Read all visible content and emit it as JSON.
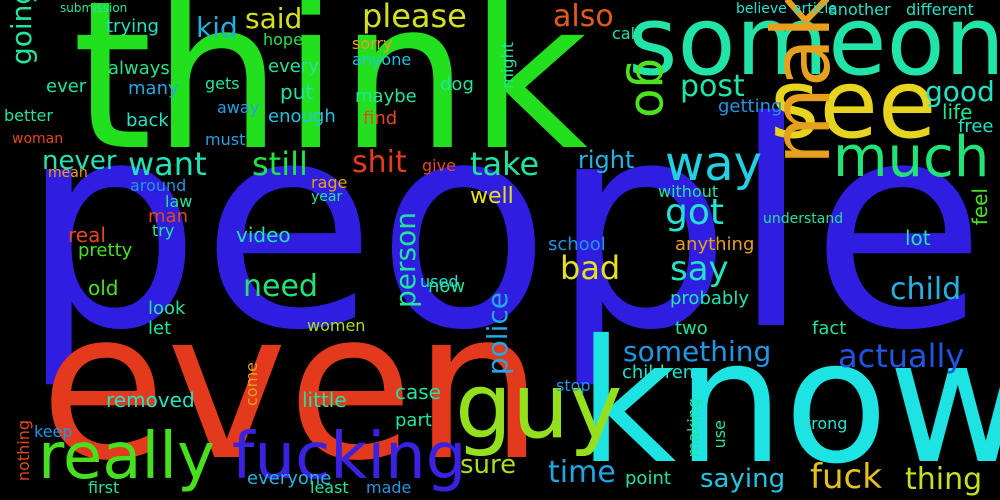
{
  "title": "",
  "background": "#000000",
  "words": [
    {
      "text": "people",
      "color": "#2f1ee0"
    },
    {
      "text": "think",
      "color": "#22e01e"
    },
    {
      "text": "even",
      "color": "#e3391d"
    },
    {
      "text": "know",
      "color": "#1ee3e3"
    },
    {
      "text": "someone",
      "color": "#22e3a8"
    },
    {
      "text": "see",
      "color": "#e6d41e"
    },
    {
      "text": "guy",
      "color": "#94e01e"
    },
    {
      "text": "really",
      "color": "#46e01e"
    },
    {
      "text": "fucking",
      "color": "#3a22e0"
    },
    {
      "text": "make",
      "color": "#e6a01e"
    },
    {
      "text": "much",
      "color": "#22e376"
    },
    {
      "text": "way",
      "color": "#22d2e3"
    },
    {
      "text": "go",
      "color": "#4fe01e"
    },
    {
      "text": "want",
      "color": "#22e3b4"
    },
    {
      "text": "still",
      "color": "#22e346"
    },
    {
      "text": "shit",
      "color": "#e33b1d"
    },
    {
      "text": "take",
      "color": "#22e3a0"
    },
    {
      "text": "got",
      "color": "#22e3d4"
    },
    {
      "text": "say",
      "color": "#22e3c4"
    },
    {
      "text": "need",
      "color": "#22e376"
    },
    {
      "text": "bad",
      "color": "#e6e01e"
    },
    {
      "text": "please",
      "color": "#d4e01e"
    },
    {
      "text": "said",
      "color": "#d4e01e"
    },
    {
      "text": "also",
      "color": "#e35a1d"
    },
    {
      "text": "kid",
      "color": "#22aee3"
    },
    {
      "text": "post",
      "color": "#22e3a8"
    },
    {
      "text": "good",
      "color": "#22e3c4"
    },
    {
      "text": "going",
      "color": "#22e3a0"
    },
    {
      "text": "never",
      "color": "#22e3b4"
    },
    {
      "text": "something",
      "color": "#2296e3"
    },
    {
      "text": "actually",
      "color": "#2254e3"
    },
    {
      "text": "child",
      "color": "#22b2e3"
    },
    {
      "text": "police",
      "color": "#22a8e3"
    },
    {
      "text": "person",
      "color": "#22e3a0"
    },
    {
      "text": "fuck",
      "color": "#e6c01e"
    },
    {
      "text": "thing",
      "color": "#c4e01e"
    },
    {
      "text": "time",
      "color": "#22a4e3"
    },
    {
      "text": "saying",
      "color": "#22c4e3"
    },
    {
      "text": "sure",
      "color": "#a8e01e"
    },
    {
      "text": "removed",
      "color": "#22e3c4"
    },
    {
      "text": "everyone",
      "color": "#22b4e3"
    },
    {
      "text": "right",
      "color": "#22b4e3"
    },
    {
      "text": "life",
      "color": "#22e38a"
    },
    {
      "text": "free",
      "color": "#22e3c4"
    },
    {
      "text": "feel",
      "color": "#46e31e"
    },
    {
      "text": "lot",
      "color": "#22e3a8"
    },
    {
      "text": "case",
      "color": "#22e3a0"
    },
    {
      "text": "little",
      "color": "#22e3a0"
    },
    {
      "text": "children",
      "color": "#22e3d4"
    },
    {
      "text": "probably",
      "color": "#22e3b4"
    },
    {
      "text": "well",
      "color": "#e6e01e"
    },
    {
      "text": "video",
      "color": "#22e3b4"
    },
    {
      "text": "pretty",
      "color": "#46e31e"
    },
    {
      "text": "old",
      "color": "#46e31e"
    },
    {
      "text": "real",
      "color": "#e6481e"
    },
    {
      "text": "anything",
      "color": "#e6a01e"
    },
    {
      "text": "school",
      "color": "#2296e3"
    },
    {
      "text": "always",
      "color": "#22e38a"
    },
    {
      "text": "many",
      "color": "#22a8e3"
    },
    {
      "text": "trying",
      "color": "#22e3c4"
    },
    {
      "text": "hope",
      "color": "#22e346"
    },
    {
      "text": "every",
      "color": "#22e3a0"
    },
    {
      "text": "put",
      "color": "#22e3a0"
    },
    {
      "text": "maybe",
      "color": "#22e3a0"
    },
    {
      "text": "enough",
      "color": "#22c4e3"
    },
    {
      "text": "find",
      "color": "#e6481e"
    },
    {
      "text": "dog",
      "color": "#22e3a0"
    },
    {
      "text": "might",
      "color": "#22e3a0"
    },
    {
      "text": "sorry",
      "color": "#e6a01e"
    },
    {
      "text": "anyone",
      "color": "#22c4e3"
    },
    {
      "text": "gets",
      "color": "#22e3a0"
    },
    {
      "text": "away",
      "color": "#22a0e3"
    },
    {
      "text": "must",
      "color": "#22a0e3"
    },
    {
      "text": "back",
      "color": "#22e3c4"
    },
    {
      "text": "ever",
      "color": "#22e3a0"
    },
    {
      "text": "getting",
      "color": "#2296e3"
    },
    {
      "text": "another",
      "color": "#22e3c4"
    },
    {
      "text": "different",
      "color": "#22e3c4"
    },
    {
      "text": "believe",
      "color": "#22e3d4"
    },
    {
      "text": "article",
      "color": "#22e3d4"
    },
    {
      "text": "call",
      "color": "#22e3a0"
    },
    {
      "text": "rage",
      "color": "#e6a01e"
    },
    {
      "text": "year",
      "color": "#22e3a0"
    },
    {
      "text": "law",
      "color": "#22e3a0"
    },
    {
      "text": "man",
      "color": "#e6481e"
    },
    {
      "text": "try",
      "color": "#22e3a0"
    },
    {
      "text": "around",
      "color": "#2296e3"
    },
    {
      "text": "give",
      "color": "#e6481e"
    },
    {
      "text": "without",
      "color": "#22e3a0"
    },
    {
      "text": "understand",
      "color": "#22e3a0"
    },
    {
      "text": "two",
      "color": "#22e3a0"
    },
    {
      "text": "fact",
      "color": "#22e3a0"
    },
    {
      "text": "women",
      "color": "#a8e01e"
    },
    {
      "text": "look",
      "color": "#22e3a0"
    },
    {
      "text": "let",
      "color": "#22e3a0"
    },
    {
      "text": "now",
      "color": "#22e3a0"
    },
    {
      "text": "used",
      "color": "#22e3d4"
    },
    {
      "text": "part",
      "color": "#22e3a0"
    },
    {
      "text": "come",
      "color": "#e6a01e"
    },
    {
      "text": "wrong",
      "color": "#22e3d4"
    },
    {
      "text": "making",
      "color": "#22e3a0"
    },
    {
      "text": "use",
      "color": "#22e3a0"
    },
    {
      "text": "point",
      "color": "#22e3a0"
    },
    {
      "text": "first",
      "color": "#22e3a0"
    },
    {
      "text": "made",
      "color": "#2296e3"
    },
    {
      "text": "least",
      "color": "#22e3a0"
    },
    {
      "text": "stop",
      "color": "#2296e3"
    },
    {
      "text": "keep",
      "color": "#2296e3"
    },
    {
      "text": "nothing",
      "color": "#e6481e"
    },
    {
      "text": "better",
      "color": "#22e3a0"
    },
    {
      "text": "submission",
      "color": "#22e3a0"
    },
    {
      "text": "woman",
      "color": "#e6481e"
    },
    {
      "text": "mean",
      "color": "#e6a01e"
    }
  ]
}
